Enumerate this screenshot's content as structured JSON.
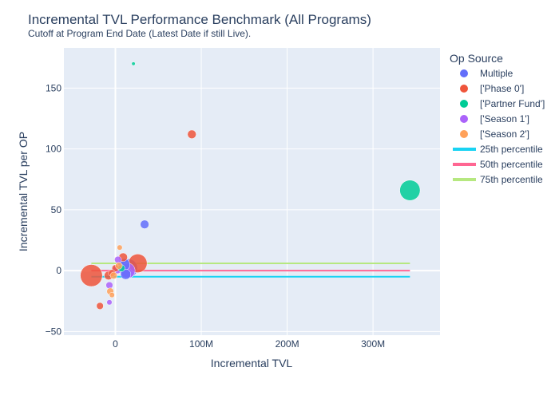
{
  "chart_data": {
    "type": "scatter",
    "title": "Incremental TVL Performance Benchmark (All Programs)",
    "subtitle": "Cutoff at Program End Date (Latest Date if still Live).",
    "xlabel": "Incremental TVL",
    "ylabel": "Incremental TVL per OP",
    "xlim": [
      -60000000,
      378000000
    ],
    "ylim": [
      -53,
      183
    ],
    "x_ticks": [
      {
        "value": 0,
        "label": "0"
      },
      {
        "value": 100000000,
        "label": "100M"
      },
      {
        "value": 200000000,
        "label": "200M"
      },
      {
        "value": 300000000,
        "label": "300M"
      }
    ],
    "y_ticks": [
      {
        "value": -50,
        "label": "−50"
      },
      {
        "value": 0,
        "label": "0"
      },
      {
        "value": 50,
        "label": "50"
      },
      {
        "value": 100,
        "label": "100"
      },
      {
        "value": 150,
        "label": "150"
      }
    ],
    "grid": true,
    "legend_title": "Op Source",
    "legend_position": "right",
    "series": [
      {
        "name": "Multiple",
        "color": "#636efa",
        "points": [
          {
            "x": 34000000,
            "y": 38,
            "size": 4
          },
          {
            "x": 15000000,
            "y": 2,
            "size": 10
          },
          {
            "x": 10000000,
            "y": 5,
            "size": 6
          },
          {
            "x": 12000000,
            "y": -3,
            "size": 5
          }
        ]
      },
      {
        "name": "['Phase 0']",
        "color": "#ef553b",
        "points": [
          {
            "x": 89000000,
            "y": 112,
            "size": 4
          },
          {
            "x": -28000000,
            "y": -4,
            "size": 12
          },
          {
            "x": 26000000,
            "y": 6,
            "size": 10
          },
          {
            "x": 9000000,
            "y": 11,
            "size": 4
          },
          {
            "x": -18000000,
            "y": -29,
            "size": 3
          },
          {
            "x": -8000000,
            "y": -4,
            "size": 4
          },
          {
            "x": 0,
            "y": 2,
            "size": 3
          },
          {
            "x": -4000000,
            "y": -2,
            "size": 3
          }
        ]
      },
      {
        "name": "['Partner Fund']",
        "color": "#00cc96",
        "points": [
          {
            "x": 343000000,
            "y": 66,
            "size": 11
          },
          {
            "x": 21000000,
            "y": 170,
            "size": 1
          },
          {
            "x": 7000000,
            "y": 2,
            "size": 3
          }
        ]
      },
      {
        "name": "['Season 1']",
        "color": "#ab63fa",
        "points": [
          {
            "x": 14000000,
            "y": 0,
            "size": 8
          },
          {
            "x": 2000000,
            "y": 1,
            "size": 4
          },
          {
            "x": -7000000,
            "y": -12,
            "size": 3
          },
          {
            "x": -7000000,
            "y": -26,
            "size": 2
          },
          {
            "x": 3000000,
            "y": 9,
            "size": 3
          }
        ]
      },
      {
        "name": "['Season 2']",
        "color": "#ffa15a",
        "points": [
          {
            "x": 5000000,
            "y": 19,
            "size": 2
          },
          {
            "x": -6000000,
            "y": -17,
            "size": 3
          },
          {
            "x": -4000000,
            "y": -20,
            "size": 2
          },
          {
            "x": -2000000,
            "y": -4,
            "size": 3
          },
          {
            "x": 4000000,
            "y": 4,
            "size": 3
          }
        ]
      }
    ],
    "percentile_lines": [
      {
        "name": "25th percentile",
        "color": "#19d3f3",
        "y": -5,
        "x_range": [
          -28000000,
          343000000
        ]
      },
      {
        "name": "50th percentile",
        "color": "#ff6692",
        "y": 0,
        "x_range": [
          -28000000,
          343000000
        ]
      },
      {
        "name": "75th percentile",
        "color": "#b6e880",
        "y": 6,
        "x_range": [
          -28000000,
          343000000
        ]
      }
    ]
  }
}
